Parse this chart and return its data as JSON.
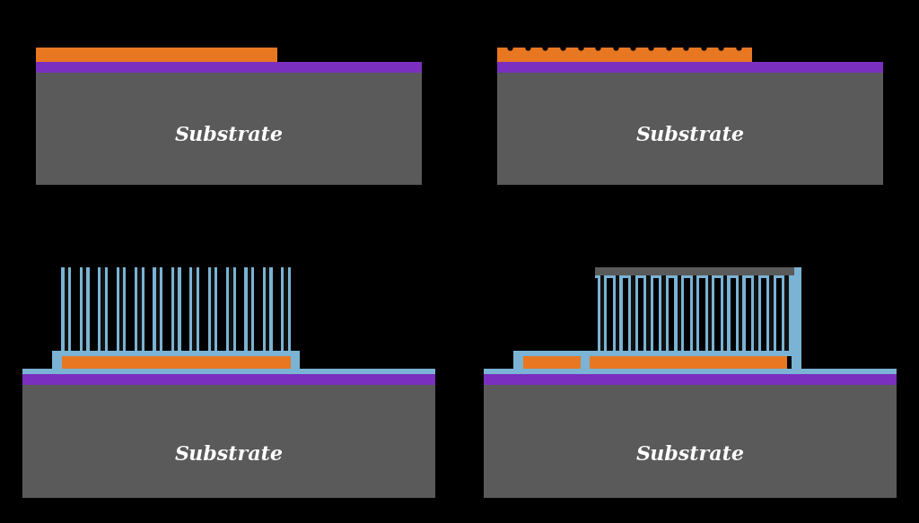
{
  "bg_color": "#000000",
  "substrate_color": "#5a5a5a",
  "purple_color": "#7b2fbe",
  "orange_color": "#e87722",
  "blue_light_color": "#7ab3d4",
  "cnf_dark_color": "#111111",
  "substrate_label": "Substrate",
  "label_color": "#ffffff",
  "label_fontsize": 16,
  "label_fontweight": "bold"
}
